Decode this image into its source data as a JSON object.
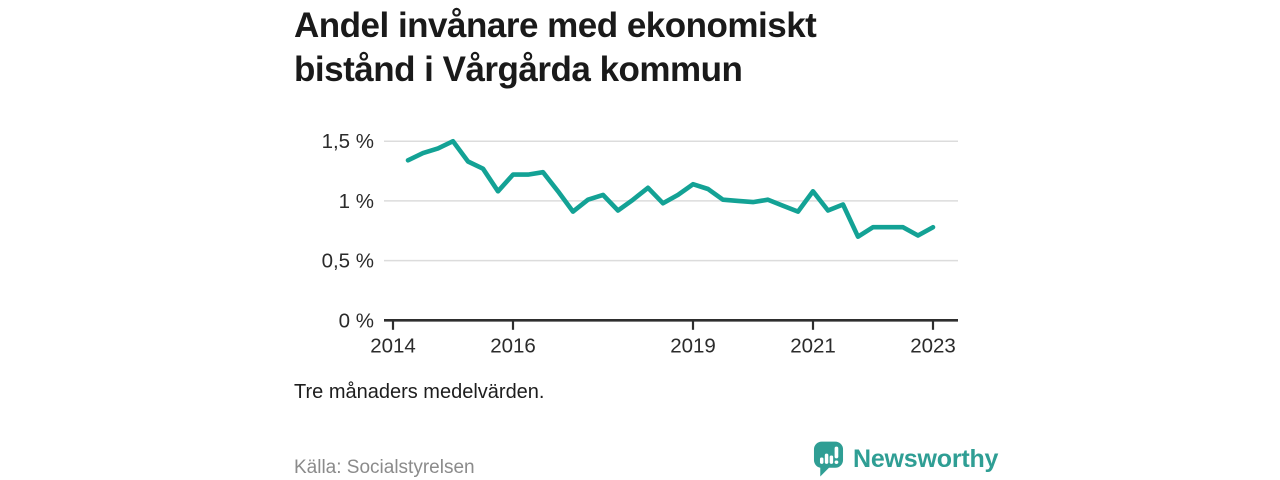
{
  "title": {
    "line1": "Andel invånare med ekonomiskt",
    "line2": "bistånd i Vårgårda kommun"
  },
  "chart_data": {
    "type": "line",
    "title": "Andel invånare med ekonomiskt bistånd i Vårgårda kommun",
    "xlabel": "",
    "ylabel": "",
    "unit": "%",
    "x": [
      2014.25,
      2014.5,
      2014.75,
      2015.0,
      2015.25,
      2015.5,
      2015.75,
      2016.0,
      2016.25,
      2016.5,
      2016.75,
      2017.0,
      2017.25,
      2017.5,
      2017.75,
      2018.0,
      2018.25,
      2018.5,
      2018.75,
      2019.0,
      2019.25,
      2019.5,
      2019.75,
      2020.0,
      2020.25,
      2020.5,
      2020.75,
      2021.0,
      2021.25,
      2021.5,
      2021.75,
      2022.0,
      2022.25,
      2022.5,
      2022.75,
      2023.0
    ],
    "series": [
      {
        "name": "Andel invånare med ekonomiskt bistånd",
        "values": [
          1.34,
          1.4,
          1.44,
          1.5,
          1.33,
          1.27,
          1.08,
          1.22,
          1.22,
          1.24,
          1.08,
          0.91,
          1.01,
          1.05,
          0.92,
          1.01,
          1.11,
          0.98,
          1.05,
          1.14,
          1.1,
          1.01,
          1.0,
          0.99,
          1.01,
          0.96,
          0.91,
          1.08,
          0.92,
          0.97,
          0.7,
          0.78,
          0.78,
          0.78,
          0.71,
          0.78
        ]
      }
    ],
    "x_ticks": {
      "values": [
        2014,
        2016,
        2019,
        2021,
        2023
      ],
      "labels": [
        "2014",
        "2016",
        "2019",
        "2021",
        "2023"
      ]
    },
    "y_ticks": {
      "values": [
        1.5,
        1.0,
        0.5,
        0
      ],
      "labels": [
        "1,5 %",
        "1 %",
        "0,5 %",
        "0 %"
      ]
    },
    "xlim": [
      2013.85,
      2023.4
    ],
    "ylim": [
      0,
      1.5
    ],
    "grid": "horizontal-only",
    "legend": "none",
    "line_color": "#13a295",
    "axis_color": "#2e2e2e",
    "grid_color": "#dcdcdc",
    "label_color": "#2b2b2b"
  },
  "footnote": "Tre månaders medelvärden.",
  "source": "Källa: Socialstyrelsen",
  "logo": {
    "text": "Newsworthy",
    "icon": "newsworthy-speech-bubble-chart-icon",
    "color": "#2f9e94"
  }
}
